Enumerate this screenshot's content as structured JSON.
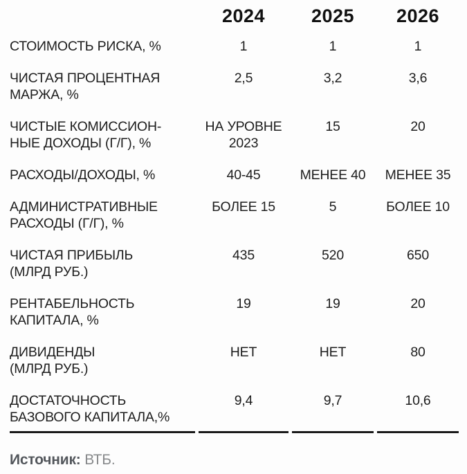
{
  "chart_data": {
    "type": "table",
    "columns": [
      "2024",
      "2025",
      "2026"
    ],
    "rows": [
      {
        "label": "СТОИМОСТЬ РИСКА, %",
        "values": [
          "1",
          "1",
          "1"
        ]
      },
      {
        "label": [
          "ЧИСТАЯ ПРОЦЕНТНАЯ",
          "МАРЖА, %"
        ],
        "values": [
          "2,5",
          "3,2",
          "3,6"
        ]
      },
      {
        "label": [
          "ЧИСТЫЕ КОМИССИОН-",
          "НЫЕ ДОХОДЫ (Г/Г), %"
        ],
        "values": [
          [
            "НА УРОВНЕ",
            "2023"
          ],
          "15",
          "20"
        ]
      },
      {
        "label": "РАСХОДЫ/ДОХОДЫ, %",
        "values": [
          "40-45",
          "МЕНЕЕ 40",
          "МЕНЕЕ 35"
        ]
      },
      {
        "label": [
          "АДМИНИСТРАТИВНЫЕ",
          "РАСХОДЫ (Г/Г), %"
        ],
        "values": [
          "БОЛЕЕ 15",
          "5",
          "БОЛЕЕ 10"
        ]
      },
      {
        "label": [
          "ЧИСТАЯ ПРИБЫЛЬ",
          "(МЛРД РУБ.)"
        ],
        "values": [
          "435",
          "520",
          "650"
        ]
      },
      {
        "label": [
          "РЕНТАБЕЛЬНОСТЬ",
          "КАПИТАЛА, %"
        ],
        "values": [
          "19",
          "19",
          "20"
        ]
      },
      {
        "label": [
          "ДИВИДЕНДЫ",
          "(МЛРД РУБ.)"
        ],
        "values": [
          "НЕТ",
          "НЕТ",
          "80"
        ]
      },
      {
        "label": [
          "ДОСТАТОЧНОСТЬ",
          "БАЗОВОГО КАПИТАЛА,%"
        ],
        "values": [
          "9,4",
          "9,7",
          "10,6"
        ]
      }
    ],
    "source": {
      "label": "Источник:",
      "value": "ВТБ."
    },
    "layout": {
      "grid": "off",
      "value_alignment": "center",
      "label_alignment": "left"
    }
  },
  "colors": {
    "text": "#1d1d1d",
    "header_text": "#111111",
    "rule": "#1a1a1a",
    "source_label": "#53575c",
    "source_value": "#87898b",
    "background": "#fdfdfd"
  }
}
